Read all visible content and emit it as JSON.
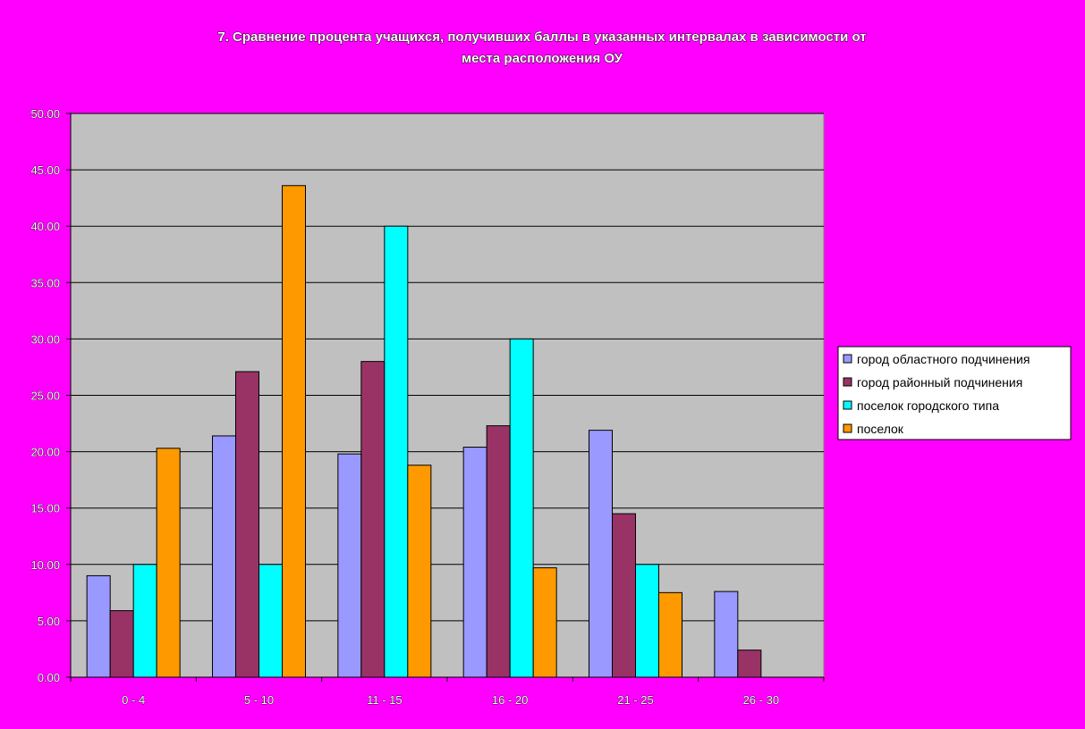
{
  "chart_data": {
    "type": "bar",
    "title_lines": [
      "7. Сравнение процента учащихся, получивших баллы в указанных интервалах в зависимости от",
      "места расположения ОУ"
    ],
    "categories": [
      "0 - 4",
      "5 - 10",
      "11 - 15",
      "16 - 20",
      "21 - 25",
      "26 - 30"
    ],
    "series": [
      {
        "name": "город областного подчинения",
        "color": "#9999FF",
        "values": [
          9.0,
          21.4,
          19.8,
          20.4,
          21.9,
          7.6
        ]
      },
      {
        "name": "город районный подчинения",
        "color": "#993366",
        "values": [
          5.9,
          27.1,
          28.0,
          22.3,
          14.5,
          2.4
        ]
      },
      {
        "name": "поселок городского типа",
        "color": "#00FFFF",
        "values": [
          10.0,
          10.0,
          40.0,
          30.0,
          10.0,
          0.0
        ]
      },
      {
        "name": "поселок",
        "color": "#FF9900",
        "values": [
          20.3,
          43.6,
          18.8,
          9.7,
          7.5,
          0.0
        ]
      }
    ],
    "ylim": [
      0,
      50
    ],
    "ytick_labels": [
      "0.00",
      "5.00",
      "10.00",
      "15.00",
      "20.00",
      "25.00",
      "30.00",
      "35.00",
      "40.00",
      "45.00",
      "50.00"
    ],
    "grid": true,
    "legend_position": "right",
    "plot_background": "#C0C0C0",
    "page_background": "#FF00FF"
  }
}
